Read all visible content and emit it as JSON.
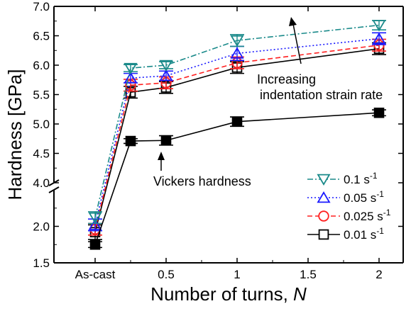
{
  "chart_data": {
    "type": "line",
    "ylabel": "Hardness [GPa]",
    "xlabel_prefix": "Number of turns, ",
    "xlabel_var": "N",
    "x_ticks": [
      {
        "x": 0,
        "label": "As-cast"
      },
      {
        "x": 0.5,
        "label": "0.5"
      },
      {
        "x": 1,
        "label": "1"
      },
      {
        "x": 1.5,
        "label": "1.5"
      },
      {
        "x": 2,
        "label": "2"
      }
    ],
    "xlim": [
      -0.29,
      2.17
    ],
    "y_axis_break": true,
    "y_lower_segment": {
      "ylim": [
        1.5,
        2.5
      ],
      "ticks": [
        "1.5",
        "2.0"
      ]
    },
    "y_upper_segment": {
      "ylim": [
        4.0,
        7.0
      ],
      "ticks": [
        "4.0",
        "4.5",
        "5.0",
        "5.5",
        "6.0",
        "6.5",
        "7.0"
      ]
    },
    "x_values": [
      0,
      0.25,
      0.5,
      1,
      2
    ],
    "series": [
      {
        "name": "0.1",
        "name_unit": "s",
        "name_exp": "-1",
        "marker": "triangle-down",
        "line": "dashdot",
        "color": "#1a8a8a",
        "values": [
          2.12,
          5.95,
          6.0,
          6.42,
          6.68
        ],
        "errors": [
          0.08,
          0.06,
          0.06,
          0.1,
          0.08
        ]
      },
      {
        "name": "0.05",
        "name_unit": "s",
        "name_exp": "-1",
        "marker": "triangle-up",
        "line": "dotted",
        "color": "#1a1aff",
        "values": [
          2.02,
          5.78,
          5.82,
          6.2,
          6.45
        ],
        "errors": [
          0.08,
          0.08,
          0.08,
          0.12,
          0.1
        ]
      },
      {
        "name": "0.025",
        "name_unit": "s",
        "name_exp": "-1",
        "marker": "circle",
        "line": "dashed",
        "color": "#ff2020",
        "values": [
          1.96,
          5.66,
          5.7,
          6.04,
          6.34
        ],
        "errors": [
          0.08,
          0.1,
          0.1,
          0.1,
          0.1
        ]
      },
      {
        "name": "0.01",
        "name_unit": "s",
        "name_exp": "-1",
        "marker": "square",
        "line": "solid",
        "color": "#000000",
        "values": [
          1.92,
          5.54,
          5.62,
          5.96,
          6.28
        ],
        "errors": [
          0.1,
          0.1,
          0.1,
          0.1,
          0.1
        ]
      }
    ],
    "vickers": {
      "x": [
        0,
        0.25,
        0.5,
        1,
        2
      ],
      "values": [
        1.75,
        4.71,
        4.72,
        5.04,
        5.19
      ],
      "errors": [
        0.04,
        0.04,
        0.08,
        0.08,
        0.05
      ],
      "marker": "square-filled",
      "color": "#000000"
    },
    "annotations": {
      "strain_rate": "Increasing\nindentation strain rate",
      "vickers": "Vickers hardness"
    },
    "legend_position": "bottom-right",
    "grid": false
  }
}
